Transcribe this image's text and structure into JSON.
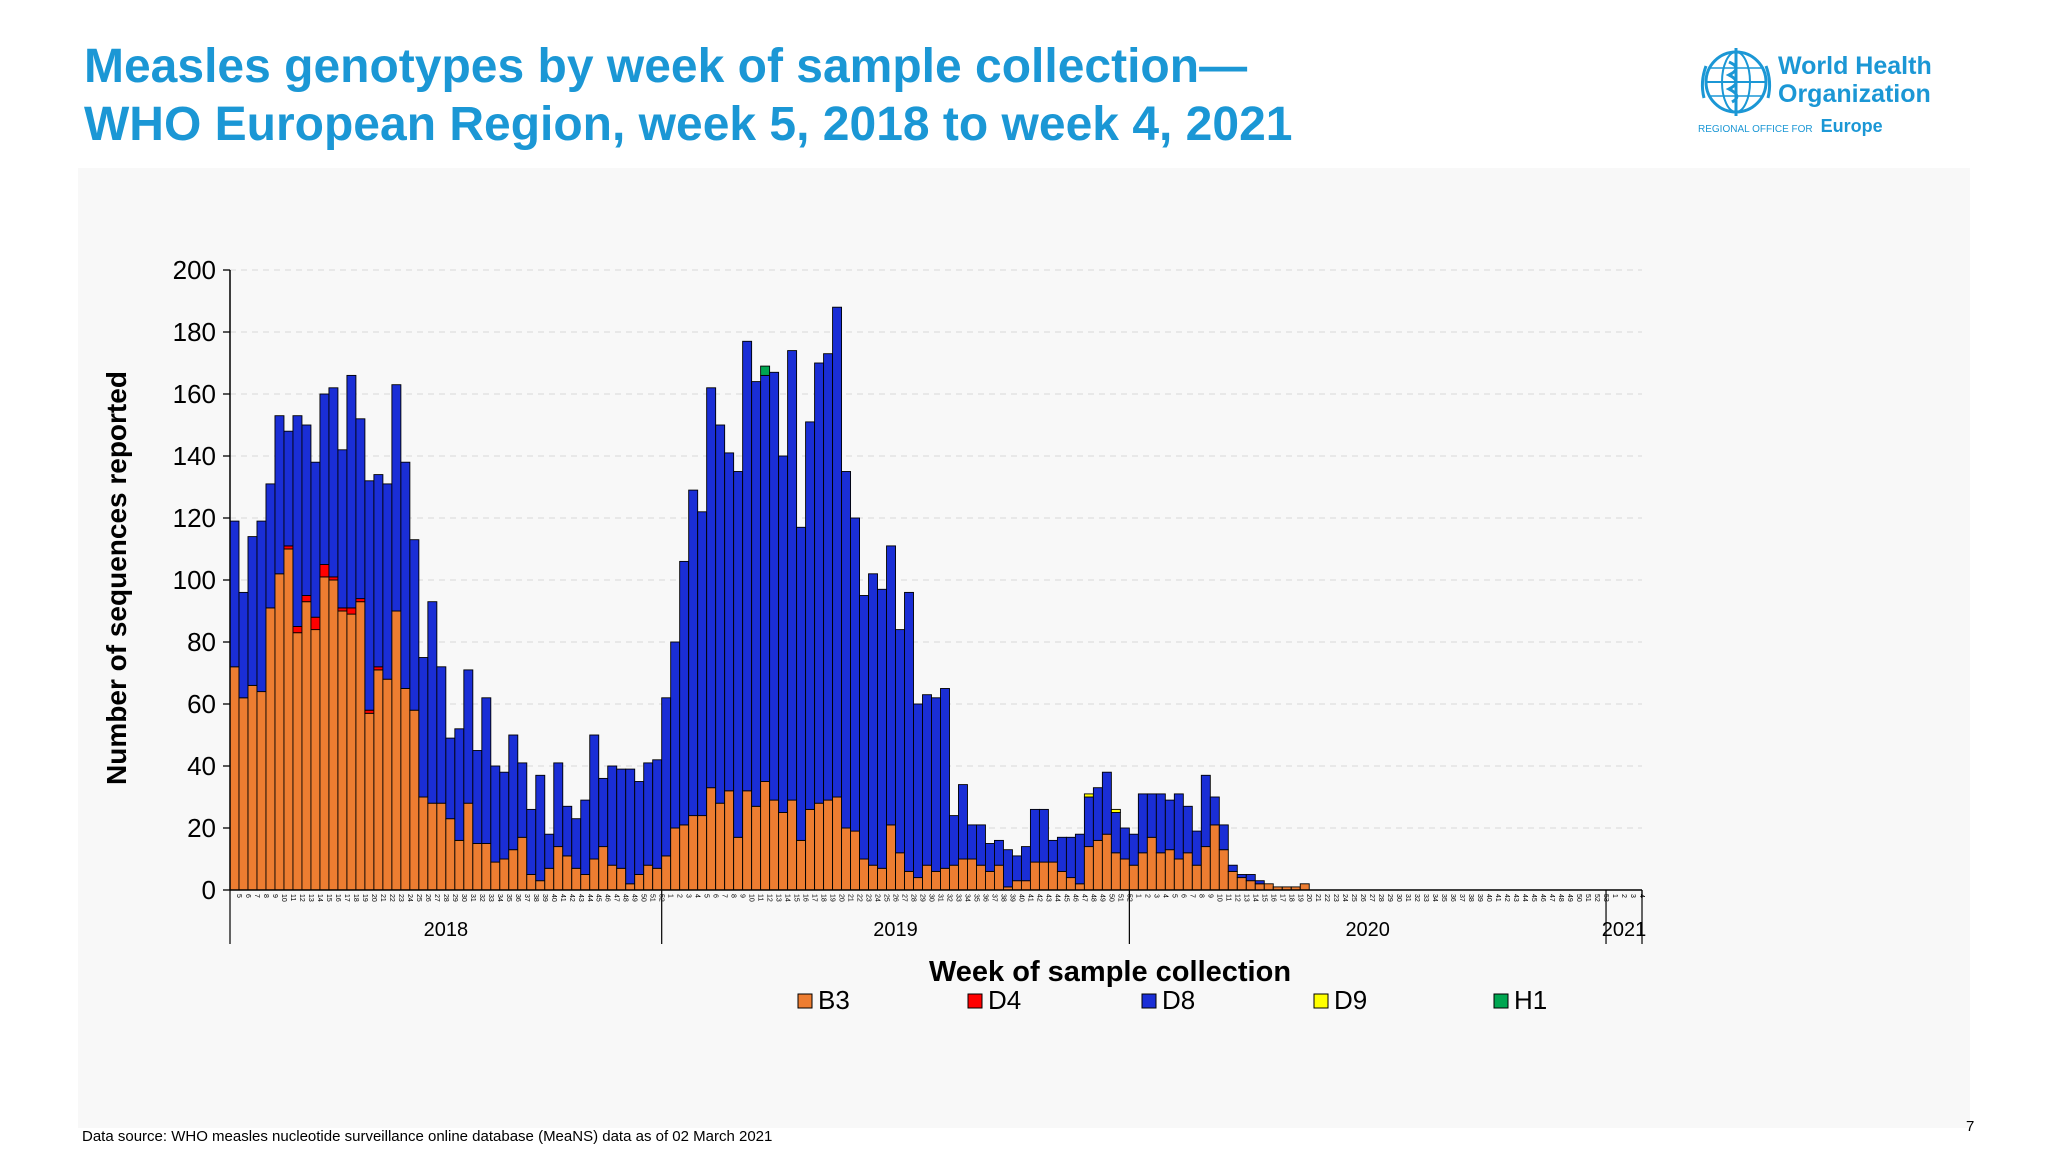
{
  "title": {
    "line1": "Measles genotypes by week of sample collection—",
    "line2": "WHO European Region, week 5, 2018 to week 4, 2021"
  },
  "logo": {
    "line1": "World Health",
    "line2": "Organization",
    "region_small": "REGIONAL OFFICE FOR",
    "region_big": "Europe"
  },
  "footer": {
    "source": "Data source: WHO measles nucleotide surveillance online database (MeaNS) data as of 02 March 2021",
    "page_number": "7"
  },
  "colors": {
    "B3": "#ed7d31",
    "D4": "#ff0000",
    "D8": "#1a2ed6",
    "D9": "#ffff00",
    "H1": "#00a651",
    "grid": "#d9d9d9",
    "title": "#1b97d5"
  },
  "chart_data": {
    "type": "bar",
    "stacked": true,
    "xlabel": "Week of sample collection",
    "ylabel": "Number of sequences reported",
    "ylim": [
      0,
      200
    ],
    "yticks": [
      0,
      20,
      40,
      60,
      80,
      100,
      120,
      140,
      160,
      180,
      200
    ],
    "grid": true,
    "legend_position": "bottom",
    "years": [
      {
        "label": "2018",
        "weeks": 48
      },
      {
        "label": "2019",
        "weeks": 52
      },
      {
        "label": "2020",
        "weeks": 53
      },
      {
        "label": "2021",
        "weeks": 4
      }
    ],
    "categories": [
      "5",
      "6",
      "7",
      "8",
      "9",
      "10",
      "11",
      "12",
      "13",
      "14",
      "15",
      "16",
      "17",
      "18",
      "19",
      "20",
      "21",
      "22",
      "23",
      "24",
      "25",
      "26",
      "27",
      "28",
      "29",
      "30",
      "31",
      "32",
      "33",
      "34",
      "35",
      "36",
      "37",
      "38",
      "39",
      "40",
      "41",
      "42",
      "43",
      "44",
      "45",
      "46",
      "47",
      "48",
      "49",
      "50",
      "51",
      "52",
      "1",
      "2",
      "3",
      "4",
      "5",
      "6",
      "7",
      "8",
      "9",
      "10",
      "11",
      "12",
      "13",
      "14",
      "15",
      "16",
      "17",
      "18",
      "19",
      "20",
      "21",
      "22",
      "23",
      "24",
      "25",
      "26",
      "27",
      "28",
      "29",
      "30",
      "31",
      "32",
      "33",
      "34",
      "35",
      "36",
      "37",
      "38",
      "39",
      "40",
      "41",
      "42",
      "43",
      "44",
      "45",
      "46",
      "47",
      "48",
      "49",
      "50",
      "51",
      "52",
      "1",
      "2",
      "3",
      "4",
      "5",
      "6",
      "7",
      "8",
      "9",
      "10",
      "11",
      "12",
      "13",
      "14",
      "15",
      "16",
      "17",
      "18",
      "19",
      "20",
      "21",
      "22",
      "23",
      "24",
      "25",
      "26",
      "27",
      "28",
      "29",
      "30",
      "31",
      "32",
      "33",
      "34",
      "35",
      "36",
      "37",
      "38",
      "39",
      "40",
      "41",
      "42",
      "43",
      "44",
      "45",
      "46",
      "47",
      "48",
      "49",
      "50",
      "51",
      "52",
      "53",
      "1",
      "2",
      "3",
      "4"
    ],
    "series": [
      {
        "name": "B3",
        "values": [
          72,
          62,
          66,
          64,
          91,
          102,
          110,
          83,
          93,
          84,
          101,
          100,
          90,
          89,
          93,
          57,
          71,
          68,
          90,
          65,
          58,
          30,
          28,
          28,
          23,
          16,
          28,
          15,
          15,
          9,
          10,
          13,
          17,
          5,
          3,
          7,
          14,
          11,
          7,
          5,
          10,
          14,
          8,
          7,
          2,
          5,
          8,
          7,
          11,
          20,
          21,
          24,
          24,
          33,
          28,
          32,
          17,
          32,
          27,
          35,
          29,
          25,
          29,
          16,
          26,
          28,
          29,
          30,
          20,
          19,
          10,
          8,
          7,
          21,
          12,
          6,
          4,
          8,
          6,
          7,
          8,
          10,
          10,
          8,
          6,
          8,
          1,
          3,
          3,
          9,
          9,
          9,
          6,
          4,
          2,
          14,
          16,
          18,
          12,
          10,
          8,
          12,
          17,
          12,
          13,
          10,
          12,
          8,
          14,
          21,
          13,
          6,
          4,
          3,
          2,
          2,
          1,
          1,
          1,
          2,
          0,
          0,
          0,
          0,
          0,
          0,
          0,
          0,
          0,
          0,
          0,
          0,
          0,
          0,
          0,
          0,
          0,
          0,
          0,
          0,
          0,
          0,
          0,
          0,
          0,
          0,
          0,
          0,
          0,
          0,
          0,
          0,
          0,
          0,
          0,
          0,
          0
        ]
      },
      {
        "name": "D4",
        "values": [
          0,
          0,
          0,
          0,
          0,
          0,
          1,
          2,
          2,
          4,
          4,
          1,
          1,
          2,
          1,
          1,
          1,
          0,
          0,
          0,
          0,
          0,
          0,
          0,
          0,
          0,
          0,
          0,
          0,
          0,
          0,
          0,
          0,
          0,
          0,
          0,
          0,
          0,
          0,
          0,
          0,
          0,
          0,
          0,
          0,
          0,
          0,
          0,
          0,
          0,
          0,
          0,
          0,
          0,
          0,
          0,
          0,
          0,
          0,
          0,
          0,
          0,
          0,
          0,
          0,
          0,
          0,
          0,
          0,
          0,
          0,
          0,
          0,
          0,
          0,
          0,
          0,
          0,
          0,
          0,
          0,
          0,
          0,
          0,
          0,
          0,
          0,
          0,
          0,
          0,
          0,
          0,
          0,
          0,
          0,
          0,
          0,
          0,
          0,
          0,
          0,
          0,
          0,
          0,
          0,
          0,
          0,
          0,
          0,
          0,
          0,
          0,
          0,
          0,
          0,
          0,
          0,
          0,
          0,
          0,
          0,
          0,
          0,
          0,
          0,
          0,
          0,
          0,
          0,
          0,
          0,
          0,
          0,
          0,
          0,
          0,
          0,
          0,
          0,
          0,
          0,
          0,
          0,
          0,
          0,
          0,
          0,
          0,
          0,
          0,
          0,
          0,
          0,
          0,
          0,
          0,
          0
        ]
      },
      {
        "name": "D8",
        "values": [
          47,
          34,
          48,
          55,
          40,
          51,
          37,
          68,
          55,
          50,
          55,
          61,
          51,
          75,
          58,
          74,
          62,
          63,
          73,
          73,
          55,
          45,
          65,
          44,
          26,
          36,
          43,
          30,
          47,
          31,
          28,
          37,
          24,
          21,
          34,
          11,
          27,
          16,
          16,
          24,
          40,
          22,
          32,
          32,
          37,
          30,
          33,
          35,
          51,
          60,
          85,
          105,
          98,
          129,
          122,
          109,
          118,
          145,
          137,
          131,
          138,
          115,
          145,
          101,
          125,
          142,
          144,
          158,
          115,
          101,
          85,
          94,
          90,
          90,
          72,
          90,
          56,
          55,
          56,
          58,
          16,
          24,
          11,
          13,
          9,
          8,
          12,
          8,
          11,
          17,
          17,
          7,
          11,
          13,
          16,
          16,
          17,
          20,
          13,
          10,
          10,
          19,
          14,
          19,
          16,
          21,
          15,
          11,
          23,
          9,
          8,
          2,
          1,
          2,
          1,
          0,
          0,
          0,
          0,
          0,
          0,
          0,
          0,
          0,
          0,
          0,
          0,
          0,
          0,
          0,
          0,
          0,
          0,
          0,
          0,
          0,
          0,
          0,
          0,
          0,
          0,
          0,
          0,
          0,
          0,
          0,
          0,
          0,
          0,
          0,
          0,
          0,
          0,
          0,
          0,
          0,
          0
        ]
      },
      {
        "name": "D9",
        "values": [
          0,
          0,
          0,
          0,
          0,
          0,
          0,
          0,
          0,
          0,
          0,
          0,
          0,
          0,
          0,
          0,
          0,
          0,
          0,
          0,
          0,
          0,
          0,
          0,
          0,
          0,
          0,
          0,
          0,
          0,
          0,
          0,
          0,
          0,
          0,
          0,
          0,
          0,
          0,
          0,
          0,
          0,
          0,
          0,
          0,
          0,
          0,
          0,
          0,
          0,
          0,
          0,
          0,
          0,
          0,
          0,
          0,
          0,
          0,
          0,
          0,
          0,
          0,
          0,
          0,
          0,
          0,
          0,
          0,
          0,
          0,
          0,
          0,
          0,
          0,
          0,
          0,
          0,
          0,
          0,
          0,
          0,
          0,
          0,
          0,
          0,
          0,
          0,
          0,
          0,
          0,
          0,
          0,
          0,
          0,
          1,
          0,
          0,
          1,
          0,
          0,
          0,
          0,
          0,
          0,
          0,
          0,
          0,
          0,
          0,
          0,
          0,
          0,
          0,
          0,
          0,
          0,
          0,
          0,
          0,
          0,
          0,
          0,
          0,
          0,
          0,
          0,
          0,
          0,
          0,
          0,
          0,
          0,
          0,
          0,
          0,
          0,
          0,
          0,
          0,
          0,
          0,
          0,
          0,
          0,
          0,
          0,
          0,
          0,
          0,
          0,
          0,
          0,
          0,
          0,
          0,
          0
        ]
      },
      {
        "name": "H1",
        "values": [
          0,
          0,
          0,
          0,
          0,
          0,
          0,
          0,
          0,
          0,
          0,
          0,
          0,
          0,
          0,
          0,
          0,
          0,
          0,
          0,
          0,
          0,
          0,
          0,
          0,
          0,
          0,
          0,
          0,
          0,
          0,
          0,
          0,
          0,
          0,
          0,
          0,
          0,
          0,
          0,
          0,
          0,
          0,
          0,
          0,
          0,
          0,
          0,
          0,
          0,
          0,
          0,
          0,
          0,
          0,
          0,
          0,
          0,
          0,
          3,
          0,
          0,
          0,
          0,
          0,
          0,
          0,
          0,
          0,
          0,
          0,
          0,
          0,
          0,
          0,
          0,
          0,
          0,
          0,
          0,
          0,
          0,
          0,
          0,
          0,
          0,
          0,
          0,
          0,
          0,
          0,
          0,
          0,
          0,
          0,
          0,
          0,
          0,
          0,
          0,
          0,
          0,
          0,
          0,
          0,
          0,
          0,
          0,
          0,
          0,
          0,
          0,
          0,
          0,
          0,
          0,
          0,
          0,
          0,
          0,
          0,
          0,
          0,
          0,
          0,
          0,
          0,
          0,
          0,
          0,
          0,
          0,
          0,
          0,
          0,
          0,
          0,
          0,
          0,
          0,
          0,
          0,
          0,
          0,
          0,
          0,
          0,
          0,
          0,
          0,
          0,
          0,
          0,
          0,
          0,
          0,
          0
        ]
      }
    ]
  }
}
